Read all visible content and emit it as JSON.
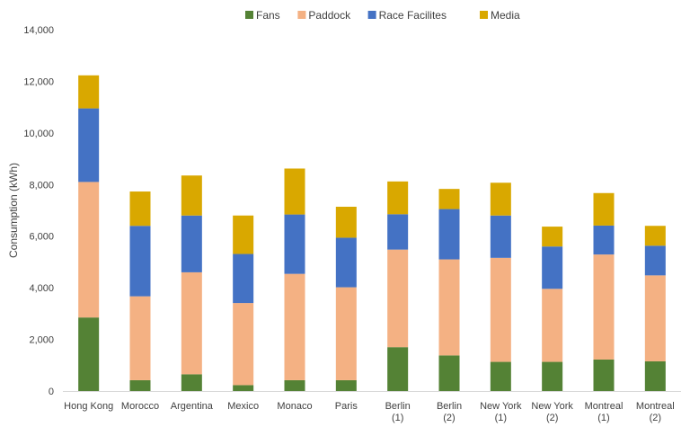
{
  "chart_data": {
    "type": "bar",
    "stacked": true,
    "title": "",
    "xlabel": "",
    "ylabel": "Consumption (kWh)",
    "ylim": [
      0,
      14000
    ],
    "yticks": [
      0,
      2000,
      4000,
      6000,
      8000,
      10000,
      12000,
      14000
    ],
    "ytick_labels": [
      "0",
      "2,000",
      "4,000",
      "6,000",
      "8,000",
      "10,000",
      "12,000",
      "14,000"
    ],
    "grid": false,
    "legend_position": "top",
    "categories": [
      [
        "Hong Kong"
      ],
      [
        "Morocco"
      ],
      [
        "Argentina"
      ],
      [
        "Mexico"
      ],
      [
        "Monaco"
      ],
      [
        "Paris"
      ],
      [
        "Berlin",
        "(1)"
      ],
      [
        "Berlin",
        "(2)"
      ],
      [
        "New York",
        "(1)"
      ],
      [
        "New York",
        "(2)"
      ],
      [
        "Montreal",
        "(1)"
      ],
      [
        "Montreal",
        "(2)"
      ]
    ],
    "series": [
      {
        "name": "Fans",
        "color": "#548235",
        "values": [
          2850,
          420,
          650,
          230,
          420,
          420,
          1700,
          1380,
          1130,
          1130,
          1220,
          1150
        ]
      },
      {
        "name": "Paddock",
        "color": "#F4B183",
        "values": [
          5250,
          3250,
          3950,
          3180,
          4120,
          3600,
          3780,
          3720,
          4030,
          2830,
          4070,
          3330
        ]
      },
      {
        "name": "Race Facilites",
        "color": "#4472C4",
        "values": [
          2850,
          2730,
          2200,
          1900,
          2300,
          1920,
          1370,
          1950,
          1640,
          1640,
          1120,
          1150
        ]
      },
      {
        "name": "Media",
        "color": "#D9A800",
        "values": [
          1280,
          1330,
          1550,
          1490,
          1780,
          1200,
          1270,
          780,
          1270,
          770,
          1260,
          770
        ]
      }
    ]
  }
}
